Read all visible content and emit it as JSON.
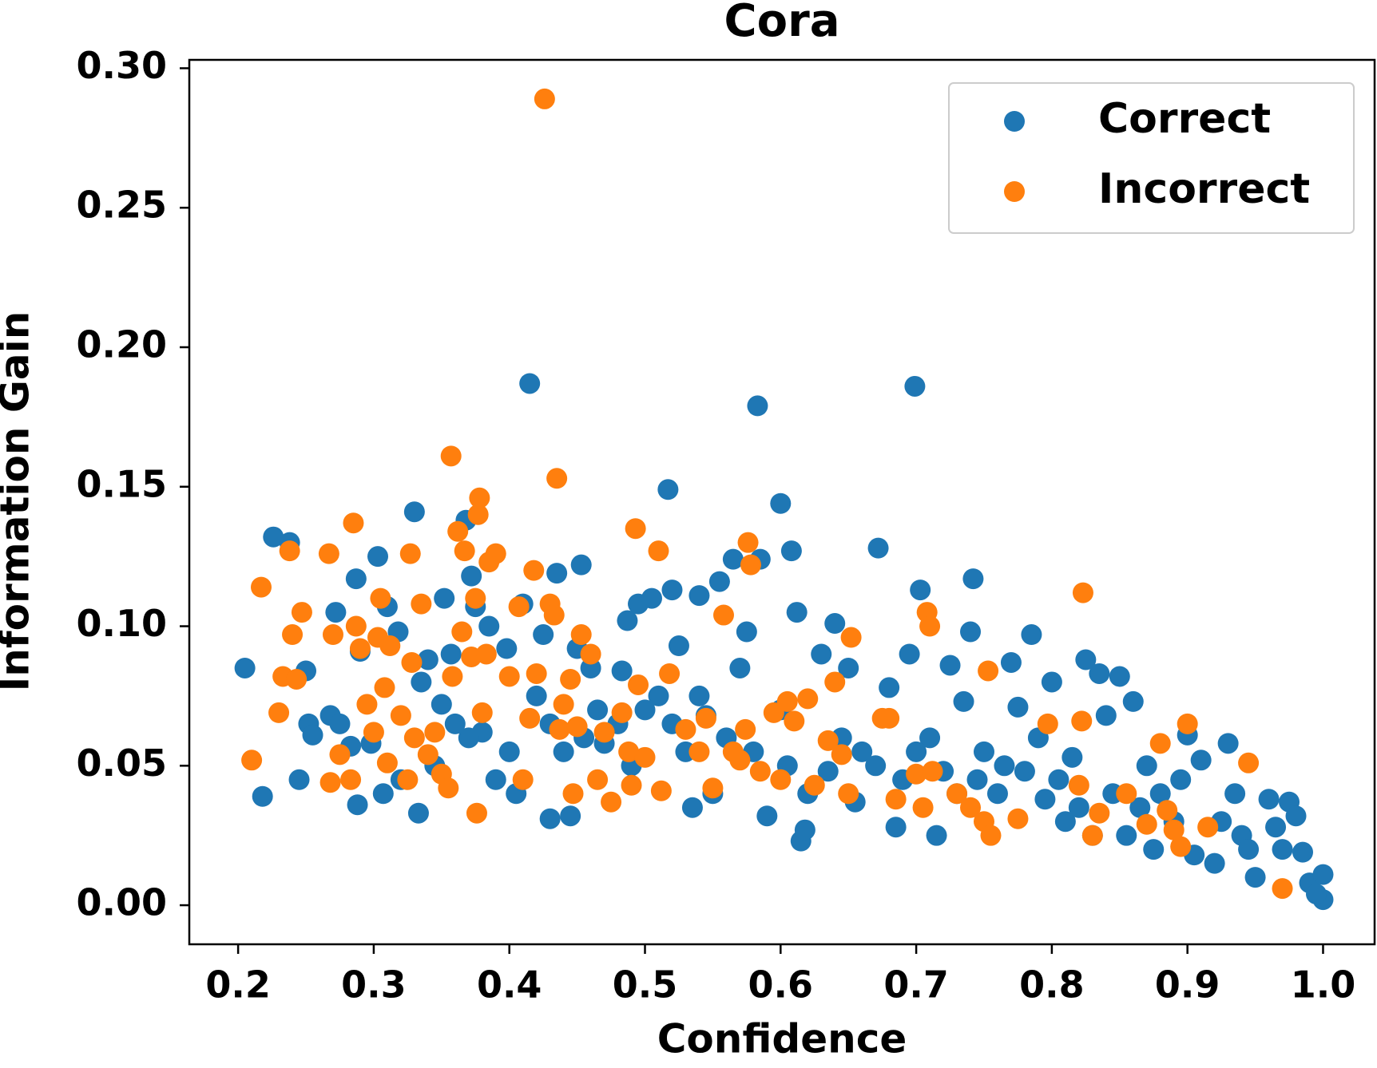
{
  "chart_data": {
    "type": "scatter",
    "title": "Cora",
    "xlabel": "Confidence",
    "ylabel": "Information Gain",
    "xlim": [
      0.164,
      1.038
    ],
    "ylim": [
      -0.014,
      0.303
    ],
    "xticks": [
      0.2,
      0.3,
      0.4,
      0.5,
      0.6,
      0.7,
      0.8,
      0.9,
      {
        "value": 1,
        "label": "1.0"
      }
    ],
    "yticks": [
      {
        "value": 0,
        "label": "0.00"
      },
      {
        "value": 0.05,
        "label": "0.05"
      },
      {
        "value": 0.1,
        "label": "0.10"
      },
      {
        "value": 0.15,
        "label": "0.15"
      },
      {
        "value": 0.2,
        "label": "0.20"
      },
      {
        "value": 0.25,
        "label": "0.25"
      },
      {
        "value": 0.3,
        "label": "0.30"
      }
    ],
    "legend": "upper right",
    "series": [
      {
        "name": "Correct",
        "color": "#1f77b4",
        "x": [
          0.205,
          0.218,
          0.226,
          0.238,
          0.245,
          0.25,
          0.252,
          0.255,
          0.268,
          0.272,
          0.275,
          0.283,
          0.287,
          0.288,
          0.29,
          0.298,
          0.303,
          0.307,
          0.31,
          0.318,
          0.32,
          0.33,
          0.333,
          0.335,
          0.34,
          0.35,
          0.352,
          0.357,
          0.368,
          0.372,
          0.375,
          0.38,
          0.385,
          0.39,
          0.398,
          0.405,
          0.41,
          0.415,
          0.42,
          0.425,
          0.43,
          0.435,
          0.44,
          0.445,
          0.45,
          0.453,
          0.46,
          0.47,
          0.48,
          0.483,
          0.487,
          0.495,
          0.5,
          0.505,
          0.51,
          0.517,
          0.52,
          0.525,
          0.53,
          0.535,
          0.54,
          0.545,
          0.55,
          0.555,
          0.565,
          0.57,
          0.575,
          0.583,
          0.585,
          0.59,
          0.6,
          0.605,
          0.608,
          0.612,
          0.615,
          0.618,
          0.63,
          0.64,
          0.65,
          0.655,
          0.67,
          0.672,
          0.68,
          0.685,
          0.695,
          0.699,
          0.703,
          0.71,
          0.715,
          0.725,
          0.735,
          0.74,
          0.742,
          0.75,
          0.76,
          0.77,
          0.775,
          0.785,
          0.79,
          0.8,
          0.805,
          0.81,
          0.815,
          0.825,
          0.83,
          0.835,
          0.84,
          0.85,
          0.86,
          0.87,
          0.875,
          0.88,
          0.89,
          0.9,
          0.91,
          0.92,
          0.93,
          0.935,
          0.94,
          0.95,
          0.96,
          0.97,
          0.975,
          0.98,
          0.985,
          0.99,
          1.0,
          1.0,
          0.995,
          0.965,
          0.945,
          0.925,
          0.905,
          0.895,
          0.865,
          0.855,
          0.845,
          0.82,
          0.795,
          0.78,
          0.765,
          0.745,
          0.73,
          0.72,
          0.7,
          0.69,
          0.66,
          0.645,
          0.635,
          0.62,
          0.6,
          0.58,
          0.56,
          0.54,
          0.52,
          0.49,
          0.465,
          0.455,
          0.43,
          0.4,
          0.37,
          0.36,
          0.345
        ],
        "values": [
          0.085,
          0.039,
          0.132,
          0.13,
          0.045,
          0.084,
          0.065,
          0.061,
          0.068,
          0.105,
          0.065,
          0.057,
          0.117,
          0.036,
          0.091,
          0.058,
          0.125,
          0.04,
          0.107,
          0.098,
          0.045,
          0.141,
          0.033,
          0.08,
          0.088,
          0.072,
          0.11,
          0.09,
          0.138,
          0.118,
          0.107,
          0.062,
          0.1,
          0.045,
          0.092,
          0.04,
          0.108,
          0.187,
          0.075,
          0.097,
          0.031,
          0.119,
          0.055,
          0.032,
          0.092,
          0.122,
          0.085,
          0.058,
          0.065,
          0.084,
          0.102,
          0.108,
          0.07,
          0.11,
          0.075,
          0.149,
          0.113,
          0.093,
          0.055,
          0.035,
          0.111,
          0.068,
          0.04,
          0.116,
          0.124,
          0.085,
          0.098,
          0.179,
          0.124,
          0.032,
          0.144,
          0.05,
          0.127,
          0.105,
          0.023,
          0.027,
          0.09,
          0.101,
          0.085,
          0.037,
          0.05,
          0.128,
          0.078,
          0.028,
          0.09,
          0.186,
          0.113,
          0.06,
          0.025,
          0.086,
          0.073,
          0.098,
          0.117,
          0.055,
          0.04,
          0.087,
          0.071,
          0.097,
          0.06,
          0.08,
          0.045,
          0.03,
          0.053,
          0.088,
          0.025,
          0.083,
          0.068,
          0.082,
          0.073,
          0.05,
          0.02,
          0.04,
          0.03,
          0.061,
          0.052,
          0.015,
          0.058,
          0.04,
          0.025,
          0.01,
          0.038,
          0.02,
          0.037,
          0.032,
          0.019,
          0.008,
          0.011,
          0.002,
          0.004,
          0.028,
          0.02,
          0.03,
          0.018,
          0.045,
          0.035,
          0.025,
          0.04,
          0.035,
          0.038,
          0.048,
          0.05,
          0.045,
          0.04,
          0.048,
          0.055,
          0.045,
          0.055,
          0.06,
          0.048,
          0.04,
          0.07,
          0.055,
          0.06,
          0.075,
          0.065,
          0.05,
          0.07,
          0.06,
          0.065,
          0.055,
          0.06,
          0.065,
          0.05
        ]
      },
      {
        "name": "Incorrect",
        "color": "#ff7f0e",
        "x": [
          0.21,
          0.217,
          0.23,
          0.233,
          0.238,
          0.24,
          0.243,
          0.247,
          0.267,
          0.268,
          0.27,
          0.275,
          0.283,
          0.285,
          0.287,
          0.29,
          0.295,
          0.3,
          0.303,
          0.305,
          0.308,
          0.31,
          0.312,
          0.32,
          0.325,
          0.327,
          0.328,
          0.33,
          0.335,
          0.34,
          0.345,
          0.35,
          0.355,
          0.357,
          0.358,
          0.362,
          0.365,
          0.367,
          0.372,
          0.375,
          0.376,
          0.377,
          0.378,
          0.38,
          0.383,
          0.385,
          0.39,
          0.4,
          0.407,
          0.41,
          0.415,
          0.418,
          0.42,
          0.426,
          0.43,
          0.433,
          0.435,
          0.437,
          0.44,
          0.445,
          0.447,
          0.45,
          0.453,
          0.46,
          0.465,
          0.47,
          0.475,
          0.483,
          0.488,
          0.49,
          0.493,
          0.495,
          0.5,
          0.51,
          0.512,
          0.518,
          0.53,
          0.54,
          0.545,
          0.55,
          0.558,
          0.565,
          0.57,
          0.574,
          0.576,
          0.578,
          0.585,
          0.595,
          0.6,
          0.605,
          0.61,
          0.62,
          0.625,
          0.635,
          0.64,
          0.645,
          0.65,
          0.652,
          0.675,
          0.68,
          0.685,
          0.7,
          0.705,
          0.708,
          0.71,
          0.712,
          0.73,
          0.74,
          0.75,
          0.753,
          0.755,
          0.775,
          0.797,
          0.82,
          0.822,
          0.823,
          0.83,
          0.835,
          0.855,
          0.87,
          0.88,
          0.885,
          0.89,
          0.895,
          0.9,
          0.915,
          0.945,
          0.97
        ],
        "values": [
          0.052,
          0.114,
          0.069,
          0.082,
          0.127,
          0.097,
          0.081,
          0.105,
          0.126,
          0.044,
          0.097,
          0.054,
          0.045,
          0.137,
          0.1,
          0.092,
          0.072,
          0.062,
          0.096,
          0.11,
          0.078,
          0.051,
          0.093,
          0.068,
          0.045,
          0.126,
          0.087,
          0.06,
          0.108,
          0.054,
          0.062,
          0.047,
          0.042,
          0.161,
          0.082,
          0.134,
          0.098,
          0.127,
          0.089,
          0.11,
          0.033,
          0.14,
          0.146,
          0.069,
          0.09,
          0.123,
          0.126,
          0.082,
          0.107,
          0.045,
          0.067,
          0.12,
          0.083,
          0.289,
          0.108,
          0.104,
          0.153,
          0.063,
          0.072,
          0.081,
          0.04,
          0.064,
          0.097,
          0.09,
          0.045,
          0.062,
          0.037,
          0.069,
          0.055,
          0.043,
          0.135,
          0.079,
          0.053,
          0.127,
          0.041,
          0.083,
          0.063,
          0.055,
          0.067,
          0.042,
          0.104,
          0.055,
          0.052,
          0.063,
          0.13,
          0.122,
          0.048,
          0.069,
          0.045,
          0.073,
          0.066,
          0.074,
          0.043,
          0.059,
          0.08,
          0.054,
          0.04,
          0.096,
          0.067,
          0.067,
          0.038,
          0.047,
          0.035,
          0.105,
          0.1,
          0.048,
          0.04,
          0.035,
          0.03,
          0.084,
          0.025,
          0.031,
          0.065,
          0.043,
          0.066,
          0.112,
          0.025,
          0.033,
          0.04,
          0.029,
          0.058,
          0.034,
          0.027,
          0.021,
          0.065,
          0.028,
          0.051,
          0.006
        ]
      }
    ]
  }
}
